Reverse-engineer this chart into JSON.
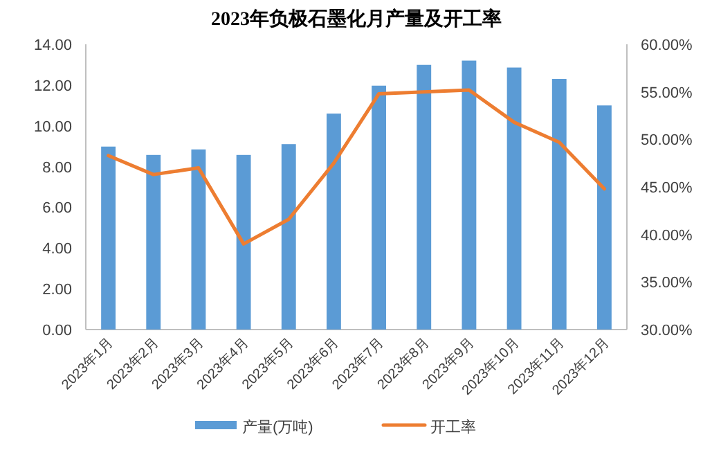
{
  "chart_data": {
    "type": "bar",
    "title": "2023年负极石墨化月产量及开工率",
    "categories": [
      "2023年1月",
      "2023年2月",
      "2023年3月",
      "2023年4月",
      "2023年5月",
      "2023年6月",
      "2023年7月",
      "2023年8月",
      "2023年9月",
      "2023年10月",
      "2023年11月",
      "2023年12月"
    ],
    "series": [
      {
        "name": "产量(万吨)",
        "color": "#5b9bd5",
        "values": [
          8.98,
          8.57,
          8.84,
          8.57,
          9.1,
          10.6,
          11.97,
          12.99,
          13.2,
          12.86,
          12.3,
          11.0
        ]
      },
      {
        "name": "开工率",
        "type": "line",
        "axis": "y2",
        "color": "#ed7d31",
        "values": [
          48.3,
          46.3,
          47.0,
          39.0,
          41.6,
          47.5,
          54.8,
          55.0,
          55.2,
          51.8,
          49.7,
          44.8
        ]
      }
    ],
    "ylim": [
      0,
      14
    ],
    "yticks": [
      {
        "value": 0,
        "label": "0.00"
      },
      {
        "value": 2,
        "label": "2.00"
      },
      {
        "value": 4,
        "label": "4.00"
      },
      {
        "value": 6,
        "label": "6.00"
      },
      {
        "value": 8,
        "label": "8.00"
      },
      {
        "value": 10,
        "label": "10.00"
      },
      {
        "value": 12,
        "label": "12.00"
      },
      {
        "value": 14,
        "label": "14.00"
      }
    ],
    "y2lim": [
      30,
      60
    ],
    "y2ticks": [
      {
        "value": 30,
        "label": "30.00%"
      },
      {
        "value": 35,
        "label": "35.00%"
      },
      {
        "value": 40,
        "label": "40.00%"
      },
      {
        "value": 45,
        "label": "45.00%"
      },
      {
        "value": 50,
        "label": "50.00%"
      },
      {
        "value": 55,
        "label": "55.00%"
      },
      {
        "value": 60,
        "label": "60.00%"
      }
    ],
    "grid": false,
    "legend": "bottom",
    "marker": "none",
    "line_style": "solid"
  }
}
